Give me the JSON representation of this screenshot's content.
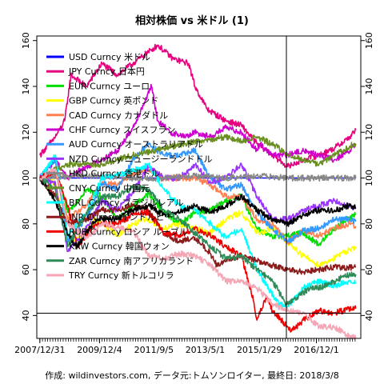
{
  "chart_data": {
    "type": "line",
    "title": "相対株価 vs 米ドル (1)",
    "caption": "作成: wildinvestors.com, データ元:トムソンロイター, 最終日: 2018/3/8",
    "ylim": [
      30,
      162
    ],
    "y_ticks": [
      40,
      60,
      80,
      100,
      120,
      140,
      160
    ],
    "x_range": [
      2007.9,
      2018.35
    ],
    "x_ticks": [
      {
        "label": "2007/12/31",
        "t": 2007.998
      },
      {
        "label": "2009/12/4",
        "t": 2009.923
      },
      {
        "label": "2011/9/5",
        "t": 2011.677
      },
      {
        "label": "2013/5/1",
        "t": 2013.329
      },
      {
        "label": "2015/1/29",
        "t": 2015.077
      },
      {
        "label": "2016/12/1",
        "t": 2016.918
      }
    ],
    "reference_lines": {
      "hline": 41,
      "vline": 2015.95
    },
    "grid": false,
    "legend_position": "top-left",
    "series": [
      {
        "name": "USD Curncy 米ドル",
        "color": "#0000ff",
        "x": [
          2008.0,
          2018.19
        ],
        "y": [
          100,
          100
        ]
      },
      {
        "name": "JPY Curncy 日本円",
        "color": "#e6007e",
        "x": [
          2008.0,
          2008.5,
          2008.8,
          2009.0,
          2009.5,
          2010.0,
          2010.5,
          2011.0,
          2011.5,
          2011.8,
          2012.3,
          2012.8,
          2013.0,
          2013.4,
          2014.0,
          2014.5,
          2015.0,
          2015.5,
          2016.0,
          2016.5,
          2017.0,
          2017.5,
          2018.0,
          2018.19
        ],
        "y": [
          110,
          118,
          125,
          145,
          140,
          150,
          145,
          150,
          155,
          158,
          152,
          150,
          140,
          130,
          125,
          123,
          115,
          110,
          105,
          108,
          110,
          113,
          118,
          121
        ]
      },
      {
        "name": "EUR Curncy ユーロ",
        "color": "#00dd00",
        "x": [
          2008.0,
          2008.5,
          2008.9,
          2009.5,
          2010.0,
          2010.5,
          2011.0,
          2011.5,
          2012.0,
          2012.5,
          2013.0,
          2013.5,
          2014.0,
          2014.5,
          2015.0,
          2015.5,
          2016.0,
          2016.5,
          2017.0,
          2017.5,
          2018.0,
          2018.19
        ],
        "y": [
          100,
          102,
          85,
          95,
          92,
          82,
          88,
          93,
          85,
          80,
          85,
          86,
          90,
          92,
          78,
          74,
          75,
          76,
          71,
          78,
          83,
          84
        ]
      },
      {
        "name": "GBP Curncy 英ポンド",
        "color": "#ffff00",
        "x": [
          2008.0,
          2008.5,
          2008.9,
          2009.3,
          2009.8,
          2010.5,
          2011.0,
          2011.5,
          2012.0,
          2012.5,
          2013.0,
          2013.5,
          2014.0,
          2014.5,
          2015.0,
          2015.5,
          2016.0,
          2016.5,
          2017.0,
          2017.5,
          2018.0,
          2018.19
        ],
        "y": [
          100,
          98,
          72,
          74,
          82,
          75,
          80,
          82,
          78,
          80,
          78,
          76,
          82,
          85,
          76,
          78,
          72,
          66,
          62,
          65,
          69,
          70
        ]
      },
      {
        "name": "CAD Curncy カナダドル",
        "color": "#ff7f50",
        "x": [
          2008.0,
          2008.5,
          2008.9,
          2009.5,
          2010.0,
          2010.5,
          2011.0,
          2011.5,
          2012.0,
          2012.5,
          2013.0,
          2013.5,
          2014.0,
          2014.5,
          2015.0,
          2015.5,
          2016.0,
          2016.5,
          2017.0,
          2017.5,
          2018.0,
          2018.19
        ],
        "y": [
          100,
          102,
          82,
          88,
          98,
          97,
          102,
          104,
          100,
          100,
          100,
          97,
          92,
          92,
          82,
          80,
          72,
          77,
          75,
          78,
          80,
          79
        ]
      },
      {
        "name": "CHF Curncy スイスフラン",
        "color": "#cc00cc",
        "x": [
          2008.0,
          2008.5,
          2008.9,
          2009.5,
          2010.0,
          2010.5,
          2011.0,
          2011.6,
          2011.8,
          2012.2,
          2012.7,
          2013.0,
          2013.5,
          2014.0,
          2014.5,
          2015.0,
          2015.1,
          2015.5,
          2016.0,
          2016.5,
          2017.0,
          2017.5,
          2018.0,
          2018.19
        ],
        "y": [
          100,
          108,
          100,
          105,
          108,
          112,
          122,
          140,
          125,
          120,
          118,
          120,
          118,
          122,
          120,
          112,
          115,
          110,
          110,
          112,
          110,
          108,
          112,
          115
        ]
      },
      {
        "name": "AUD Curncy オーストラリアドル",
        "color": "#3399ff",
        "x": [
          2008.0,
          2008.5,
          2008.9,
          2009.5,
          2010.0,
          2010.5,
          2011.0,
          2011.5,
          2012.0,
          2012.5,
          2013.0,
          2013.5,
          2014.0,
          2014.5,
          2015.0,
          2015.5,
          2016.0,
          2016.5,
          2017.0,
          2017.5,
          2018.0,
          2018.19
        ],
        "y": [
          100,
          108,
          72,
          82,
          98,
          95,
          108,
          115,
          110,
          110,
          112,
          100,
          95,
          97,
          85,
          78,
          72,
          77,
          78,
          82,
          82,
          81
        ]
      },
      {
        "name": "NZD Curncy ニュージーランドドル",
        "color": "#9933ff",
        "x": [
          2008.0,
          2008.5,
          2008.9,
          2009.5,
          2010.0,
          2010.5,
          2011.0,
          2011.5,
          2012.0,
          2012.5,
          2013.0,
          2013.5,
          2014.0,
          2014.5,
          2015.0,
          2015.5,
          2016.0,
          2016.5,
          2017.0,
          2017.5,
          2018.0,
          2018.19
        ],
        "y": [
          100,
          98,
          68,
          78,
          90,
          86,
          94,
          105,
          100,
          100,
          106,
          98,
          100,
          106,
          92,
          82,
          82,
          86,
          88,
          90,
          88,
          87
        ]
      },
      {
        "name": "HKD Curncy 香港ドル",
        "color": "#888888",
        "x": [
          2008.0,
          2009.0,
          2010.0,
          2011.0,
          2012.0,
          2013.0,
          2014.0,
          2015.0,
          2016.0,
          2017.0,
          2018.0,
          2018.19
        ],
        "y": [
          100,
          101,
          101,
          100,
          100,
          101,
          100,
          101,
          100,
          100,
          100,
          100
        ]
      },
      {
        "name": "CNY Curncy 中国元",
        "color": "#6b8e23",
        "x": [
          2008.0,
          2008.5,
          2009.0,
          2010.0,
          2010.5,
          2011.0,
          2012.0,
          2013.0,
          2014.0,
          2014.5,
          2015.0,
          2015.6,
          2016.0,
          2016.5,
          2017.0,
          2017.5,
          2018.0,
          2018.19
        ],
        "y": [
          100,
          104,
          106,
          106,
          108,
          110,
          113,
          116,
          118,
          116,
          118,
          114,
          110,
          108,
          106,
          110,
          114,
          115
        ]
      },
      {
        "name": "BRL Curncy ブラジルレアル",
        "color": "#00ffff",
        "x": [
          2008.0,
          2008.5,
          2008.9,
          2009.5,
          2010.0,
          2011.0,
          2011.5,
          2012.0,
          2012.5,
          2013.0,
          2013.5,
          2014.0,
          2014.5,
          2015.0,
          2015.7,
          2016.0,
          2016.5,
          2017.0,
          2017.5,
          2018.0,
          2018.19
        ],
        "y": [
          100,
          110,
          75,
          85,
          100,
          103,
          106,
          95,
          88,
          86,
          80,
          74,
          78,
          60,
          45,
          44,
          52,
          55,
          53,
          55,
          54
        ]
      },
      {
        "name": "INR Curncy インドルピー",
        "color": "#8b1a1a",
        "x": [
          2008.0,
          2008.5,
          2008.9,
          2009.5,
          2010.0,
          2010.5,
          2011.0,
          2011.5,
          2012.0,
          2012.5,
          2013.0,
          2013.5,
          2013.7,
          2014.0,
          2014.5,
          2015.0,
          2015.5,
          2016.0,
          2016.5,
          2017.0,
          2017.5,
          2018.0,
          2018.19
        ],
        "y": [
          100,
          92,
          80,
          82,
          86,
          86,
          88,
          86,
          76,
          72,
          74,
          67,
          62,
          64,
          66,
          64,
          62,
          60,
          59,
          60,
          61,
          61,
          61
        ]
      },
      {
        "name": "RUB Curncy ロシア ルーブル",
        "color": "#ee0000",
        "x": [
          2008.0,
          2008.5,
          2008.9,
          2009.2,
          2009.8,
          2010.5,
          2011.0,
          2011.5,
          2012.0,
          2012.5,
          2013.0,
          2013.5,
          2014.0,
          2014.5,
          2014.9,
          2015.0,
          2015.3,
          2015.5,
          2016.0,
          2016.1,
          2016.5,
          2017.0,
          2017.5,
          2018.0,
          2018.19
        ],
        "y": [
          100,
          103,
          88,
          70,
          80,
          80,
          84,
          85,
          76,
          75,
          78,
          75,
          70,
          66,
          46,
          38,
          48,
          42,
          35,
          33,
          38,
          42,
          41,
          43,
          43
        ]
      },
      {
        "name": "KRW Curncy 韓国ウォン",
        "color": "#000000",
        "x": [
          2008.0,
          2008.5,
          2008.9,
          2009.2,
          2009.8,
          2010.5,
          2011.0,
          2011.5,
          2012.0,
          2012.5,
          2013.0,
          2013.5,
          2014.0,
          2014.5,
          2015.0,
          2015.5,
          2016.0,
          2016.5,
          2017.0,
          2017.5,
          2018.0,
          2018.19
        ],
        "y": [
          100,
          90,
          75,
          70,
          82,
          82,
          86,
          88,
          84,
          85,
          88,
          85,
          88,
          92,
          86,
          82,
          80,
          84,
          86,
          86,
          88,
          87
        ]
      },
      {
        "name": "ZAR Curncy 南アフリカランド",
        "color": "#2e8b57",
        "x": [
          2008.0,
          2008.5,
          2008.9,
          2009.5,
          2010.0,
          2010.5,
          2011.0,
          2011.5,
          2012.0,
          2012.5,
          2013.0,
          2013.5,
          2014.0,
          2014.5,
          2015.0,
          2015.5,
          2015.95,
          2016.3,
          2016.7,
          2017.0,
          2017.5,
          2018.0,
          2018.19
        ],
        "y": [
          100,
          95,
          70,
          85,
          92,
          92,
          96,
          95,
          86,
          82,
          76,
          70,
          65,
          66,
          60,
          55,
          45,
          48,
          52,
          52,
          55,
          58,
          58
        ]
      },
      {
        "name": "TRY Curncy 新トルコリラ",
        "color": "#f4a6b5",
        "x": [
          2008.0,
          2008.5,
          2008.9,
          2009.5,
          2010.0,
          2011.0,
          2011.5,
          2012.0,
          2012.5,
          2013.0,
          2013.5,
          2014.0,
          2014.5,
          2015.0,
          2015.5,
          2016.0,
          2016.5,
          2017.0,
          2017.5,
          2018.0,
          2018.19
        ],
        "y": [
          100,
          104,
          80,
          74,
          80,
          77,
          66,
          65,
          67,
          66,
          62,
          55,
          55,
          52,
          45,
          42,
          41,
          35,
          35,
          31,
          30
        ]
      }
    ]
  }
}
